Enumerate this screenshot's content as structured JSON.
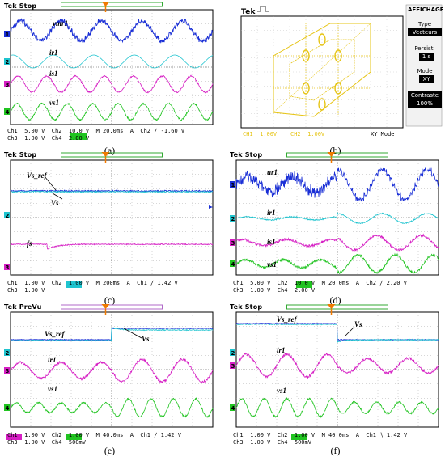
{
  "panels": {
    "a": {
      "caption": "(a)",
      "header": "Tek Stop",
      "labels": [
        "vmr1",
        "ir1",
        "is1",
        "vs1"
      ],
      "footer1": "Ch1  5.00 V  Ch2  10.0 V  M 20.0ms  A  Ch2 ∕ -1.60 V",
      "footer2": "Ch3  1.00 V  Ch4  2.00 V"
    },
    "b": {
      "caption": "(b)",
      "header": "Tek",
      "menu_title": "AFFICHAGE",
      "menu_items": [
        {
          "label": "Type",
          "value": "Vecteurs"
        },
        {
          "label": "Persist.",
          "value": "1 s"
        },
        {
          "label": "Mode",
          "value": "XY"
        },
        {
          "label": "Contraste",
          "value": "100%"
        }
      ],
      "footer1": "CH1  1.00V    CH2  1.00V",
      "footer_mode": "XY Mode"
    },
    "c": {
      "caption": "(c)",
      "header": "Tek Stop",
      "labels": [
        "Vs_ref",
        "Vs",
        "fs"
      ],
      "footer1": "Ch1  1.00 V  Ch2  1.00 V  M 200ms  A  Ch1 ∕ 1.42 V",
      "footer2": "Ch3  1.00 V"
    },
    "d": {
      "caption": "(d)",
      "header": "Tek Stop",
      "labels": [
        "ur1",
        "ir1",
        "is1",
        "vs1"
      ],
      "footer1": "Ch1  5.00 V  Ch2  10.0 V  M 20.0ms  A  Ch2 ∕ 2.20 V",
      "footer2": "Ch3  1.00 V  Ch4  2.00 V"
    },
    "e": {
      "caption": "(e)",
      "header": "Tek PreVu",
      "labels": [
        "Vs_ref",
        "Vs",
        "ir1",
        "vs1"
      ],
      "footer1": "Ch1  1.00 V  Ch2  1.00 V  M 40.0ms  A  Ch1 ∕ 1.42 V",
      "footer2": "Ch3  1.00 V  Ch4  500mV"
    },
    "f": {
      "caption": "(f)",
      "header": "Tek Stop",
      "labels": [
        "Vs_ref",
        "Vs",
        "ir1",
        "vs1"
      ],
      "footer1": "Ch1  1.00 V  Ch2  1.00 V  M 40.0ms  A  Ch1 ∖ 1.42 V",
      "footer2": "Ch3  1.00 V  Ch4  500mV"
    }
  },
  "colors": {
    "ch1": "#1a2fd6",
    "ch2": "#1fc4cf",
    "ch3": "#d61fc4",
    "ch4": "#21c421",
    "xy": "#e6c414",
    "grid": "#9a9a9a",
    "trigger": "#f07a00"
  }
}
